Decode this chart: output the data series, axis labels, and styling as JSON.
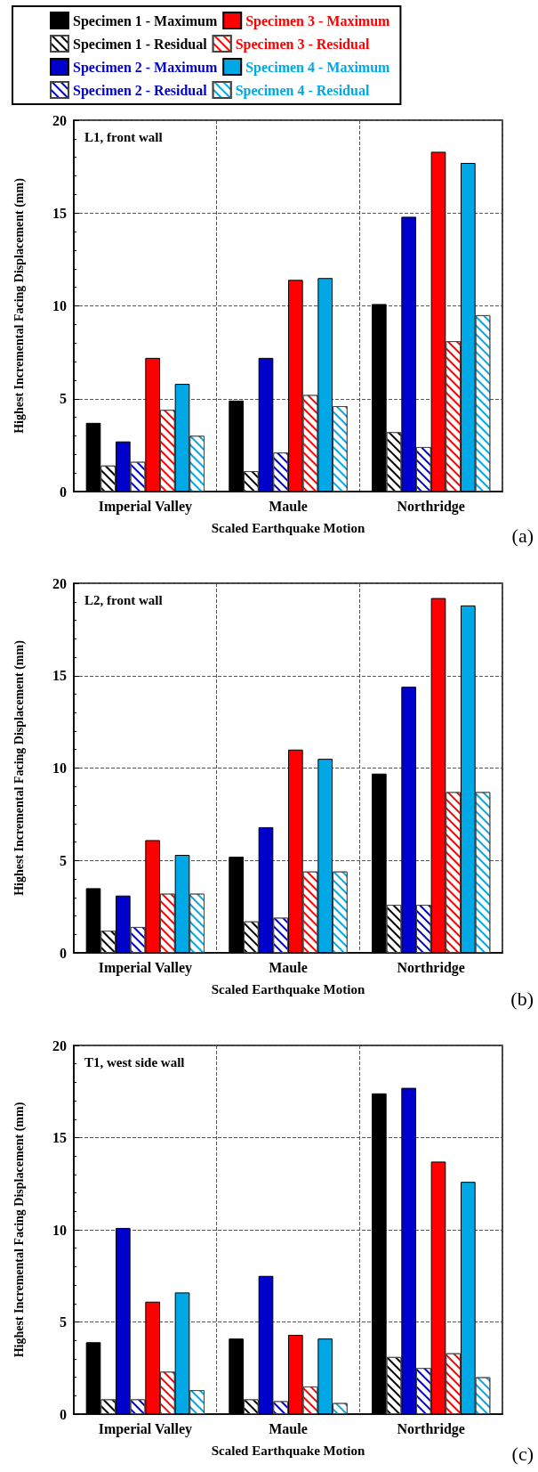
{
  "chart_data": [
    {
      "type": "bar",
      "categories": [
        "Imperial Valley",
        "Maule",
        "Northridge"
      ],
      "xlabel": "Scaled Earthquake Motion",
      "ylabel": "Highest Incremental Facing Displacement (mm)",
      "ylim": [
        0,
        20
      ],
      "yticks": [
        0,
        5,
        10,
        15,
        20
      ],
      "grid": true,
      "legend": "top",
      "annotations": [
        "L1, front wall",
        "(a)"
      ],
      "series": [
        {
          "name": "Specimen 1 - Maximum",
          "color": "#000000",
          "values": [
            3.7,
            4.9,
            10.1
          ]
        },
        {
          "name": "Specimen 1 - Residual",
          "color": "#000000",
          "values": [
            1.4,
            1.1,
            3.2
          ]
        },
        {
          "name": "Specimen 2 - Maximum",
          "color": "#0000cc",
          "values": [
            2.7,
            7.2,
            14.8
          ]
        },
        {
          "name": "Specimen 2 - Residual",
          "color": "#0000cc",
          "values": [
            1.6,
            2.1,
            2.4
          ]
        },
        {
          "name": "Specimen 3 - Maximum",
          "color": "#ff0000",
          "values": [
            7.2,
            11.4,
            18.3
          ]
        },
        {
          "name": "Specimen 3 - Residual",
          "color": "#ff0000",
          "values": [
            4.4,
            5.2,
            8.1
          ]
        },
        {
          "name": "Specimen 4 - Maximum",
          "color": "#00a8e6",
          "values": [
            5.8,
            11.5,
            17.7
          ]
        },
        {
          "name": "Specimen 4 - Residual",
          "color": "#00a8e6",
          "values": [
            3.0,
            4.6,
            9.5
          ]
        }
      ]
    },
    {
      "type": "bar",
      "categories": [
        "Imperial Valley",
        "Maule",
        "Northridge"
      ],
      "xlabel": "Scaled Earthquake Motion",
      "ylabel": "Highest Incremental Facing Displacement (mm)",
      "ylim": [
        0,
        20
      ],
      "yticks": [
        0,
        5,
        10,
        15,
        20
      ],
      "grid": true,
      "annotations": [
        "L2, front wall",
        "(b)"
      ],
      "series": [
        {
          "color": "#000000",
          "values": [
            3.5,
            5.2,
            9.7
          ]
        },
        {
          "color": "#000000",
          "values": [
            1.2,
            1.7,
            2.6
          ]
        },
        {
          "color": "#0000cc",
          "values": [
            3.1,
            6.8,
            14.4
          ]
        },
        {
          "color": "#0000cc",
          "values": [
            1.4,
            1.9,
            2.6
          ]
        },
        {
          "color": "#ff0000",
          "values": [
            6.1,
            11.0,
            19.2
          ]
        },
        {
          "color": "#ff0000",
          "values": [
            3.2,
            4.4,
            8.7
          ]
        },
        {
          "color": "#00a8e6",
          "values": [
            5.3,
            10.5,
            18.8
          ]
        },
        {
          "color": "#00a8e6",
          "values": [
            3.2,
            4.4,
            8.7
          ]
        }
      ]
    },
    {
      "type": "bar",
      "categories": [
        "Imperial Valley",
        "Maule",
        "Northridge"
      ],
      "xlabel": "Scaled Earthquake Motion",
      "ylabel": "Highest Incremental Facing Displacement (mm)",
      "ylim": [
        0,
        20
      ],
      "yticks": [
        0,
        5,
        10,
        15,
        20
      ],
      "grid": true,
      "annotations": [
        "T1, west side wall",
        "(c)"
      ],
      "series": [
        {
          "color": "#000000",
          "values": [
            3.9,
            4.1,
            17.4
          ]
        },
        {
          "color": "#000000",
          "values": [
            0.8,
            0.8,
            3.1
          ]
        },
        {
          "color": "#0000cc",
          "values": [
            10.1,
            7.5,
            17.7
          ]
        },
        {
          "color": "#0000cc",
          "values": [
            0.8,
            0.7,
            2.5
          ]
        },
        {
          "color": "#ff0000",
          "values": [
            6.1,
            4.3,
            13.7
          ]
        },
        {
          "color": "#ff0000",
          "values": [
            2.3,
            1.5,
            3.3
          ]
        },
        {
          "color": "#00a8e6",
          "values": [
            6.6,
            4.1,
            12.6
          ]
        },
        {
          "color": "#00a8e6",
          "values": [
            1.3,
            0.6,
            2.0
          ]
        }
      ]
    }
  ]
}
